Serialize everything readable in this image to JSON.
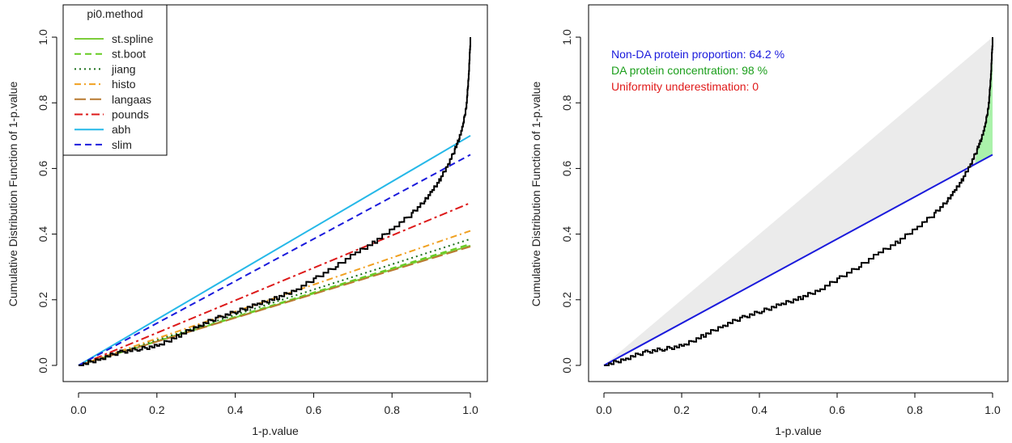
{
  "chart_data": [
    {
      "type": "line",
      "xlabel": "1-p.value",
      "ylabel": "Cumulative Distribution Function of 1-p.value",
      "xlim": [
        0,
        1
      ],
      "ylim": [
        0,
        1
      ],
      "xticks": [
        "0.0",
        "0.2",
        "0.4",
        "0.6",
        "0.8",
        "1.0"
      ],
      "yticks": [
        "0.0",
        "0.2",
        "0.4",
        "0.6",
        "0.8",
        "1.0"
      ],
      "grid": false,
      "legend": {
        "title": "pi0.method",
        "placement": "top-left",
        "entries": [
          "st.spline",
          "st.boot",
          "jiang",
          "histo",
          "langaas",
          "pounds",
          "abh",
          "slim"
        ]
      },
      "ecdf": [
        [
          0,
          0
        ],
        [
          0.05,
          0.02
        ],
        [
          0.1,
          0.04
        ],
        [
          0.15,
          0.05
        ],
        [
          0.2,
          0.06
        ],
        [
          0.25,
          0.09
        ],
        [
          0.3,
          0.12
        ],
        [
          0.35,
          0.145
        ],
        [
          0.4,
          0.165
        ],
        [
          0.45,
          0.185
        ],
        [
          0.5,
          0.205
        ],
        [
          0.55,
          0.23
        ],
        [
          0.6,
          0.265
        ],
        [
          0.65,
          0.3
        ],
        [
          0.7,
          0.34
        ],
        [
          0.75,
          0.375
        ],
        [
          0.8,
          0.42
        ],
        [
          0.85,
          0.465
        ],
        [
          0.88,
          0.5
        ],
        [
          0.9,
          0.53
        ],
        [
          0.92,
          0.565
        ],
        [
          0.94,
          0.61
        ],
        [
          0.96,
          0.66
        ],
        [
          0.97,
          0.69
        ],
        [
          0.98,
          0.73
        ],
        [
          0.99,
          0.8
        ],
        [
          0.995,
          0.88
        ],
        [
          1.0,
          1.0
        ]
      ],
      "series": [
        {
          "name": "st.spline",
          "slope": 0.365,
          "color": "#7ccd3a",
          "dash": ""
        },
        {
          "name": "st.boot",
          "slope": 0.37,
          "color": "#66cc22",
          "dash": "8,5"
        },
        {
          "name": "jiang",
          "slope": 0.385,
          "color": "#1a6e1a",
          "dash": "2,4"
        },
        {
          "name": "histo",
          "slope": 0.41,
          "color": "#f0a020",
          "dash": "8,4,2,4"
        },
        {
          "name": "langaas",
          "slope": 0.362,
          "color": "#b87a30",
          "dash": "14,5"
        },
        {
          "name": "pounds",
          "slope": 0.495,
          "color": "#dd1a1a",
          "dash": "10,4,3,4"
        },
        {
          "name": "abh",
          "slope": 0.7,
          "color": "#25b8e8",
          "dash": ""
        },
        {
          "name": "slim",
          "slope": 0.642,
          "color": "#1a1adc",
          "dash": "8,5"
        }
      ]
    },
    {
      "type": "line",
      "xlabel": "1-p.value",
      "ylabel": "Cumulative Distribution Function of 1-p.value",
      "xlim": [
        0,
        1
      ],
      "ylim": [
        0,
        1
      ],
      "xticks": [
        "0.0",
        "0.2",
        "0.4",
        "0.6",
        "0.8",
        "1.0"
      ],
      "yticks": [
        "0.0",
        "0.2",
        "0.4",
        "0.6",
        "0.8",
        "1.0"
      ],
      "grid": false,
      "line_slope": 0.642,
      "line_color": "#1a1adc",
      "shade_color": "#ebebeb",
      "highlight_color": "#aaf2aa",
      "annotations": [
        {
          "label": "Non-DA protein proportion:",
          "value": "64.2 %",
          "color": "#1a1adc"
        },
        {
          "label": "DA protein concentration:",
          "value": "98 %",
          "color": "#1a9e1a"
        },
        {
          "label": "Uniformity underestimation:",
          "value": "0",
          "color": "#e01a1a"
        }
      ]
    }
  ]
}
